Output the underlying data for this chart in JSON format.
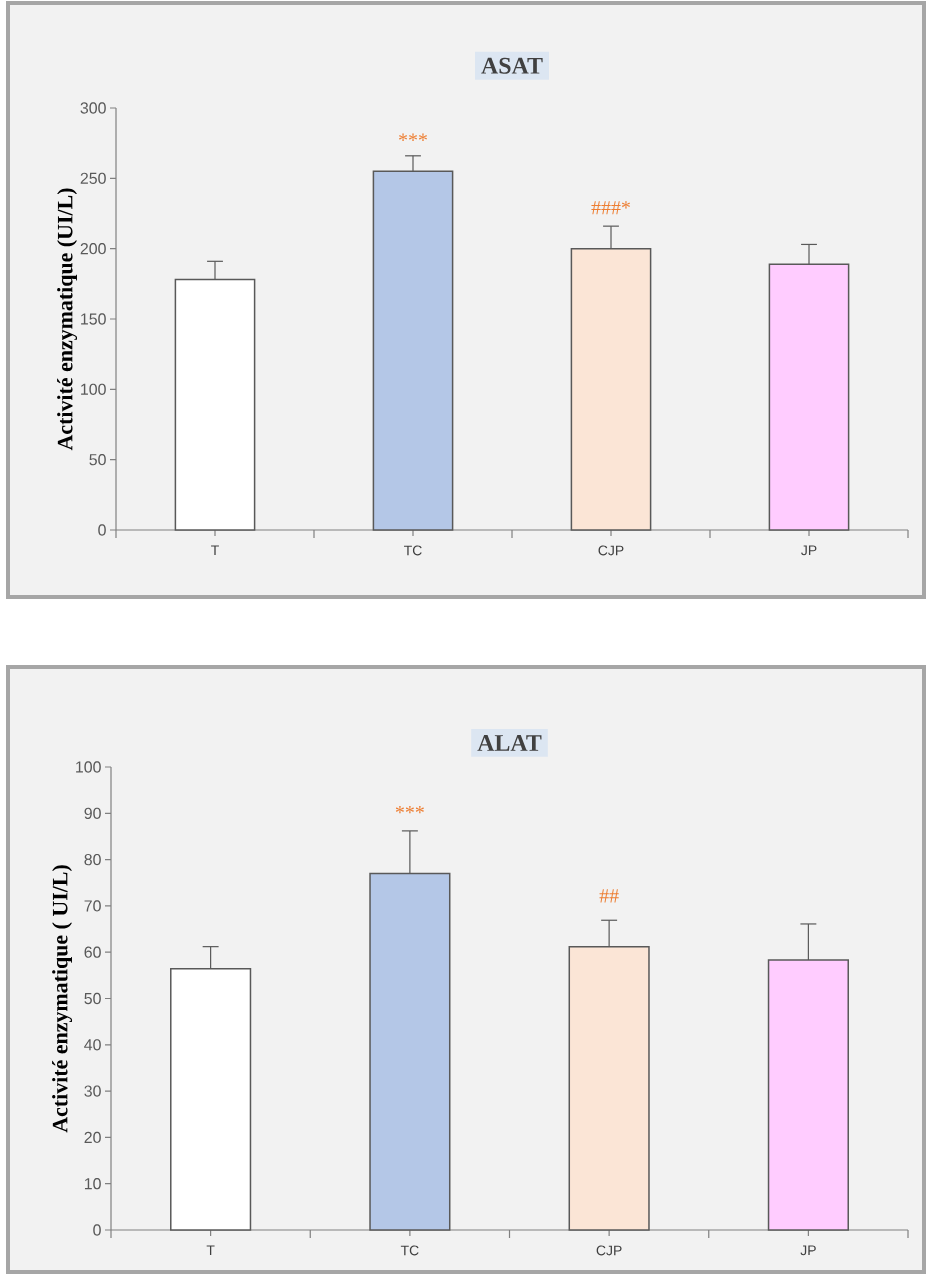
{
  "chart_data": [
    {
      "type": "bar",
      "title": "ASAT",
      "ylabel": "Activité enzymatique (UI/L)",
      "categories": [
        "T",
        "TC",
        "CJP",
        "JP"
      ],
      "values": [
        178,
        255,
        200,
        189
      ],
      "colors": [
        "#ffffff",
        "#b4c7e7",
        "#fbe5d6",
        "#ffccff"
      ],
      "errors": [
        [
          178,
          191
        ],
        [
          255,
          266
        ],
        [
          200,
          216
        ],
        [
          189,
          203
        ]
      ],
      "ylim": [
        0,
        300
      ],
      "yticks": [
        0,
        50,
        100,
        150,
        200,
        250,
        300
      ],
      "annotations": [
        "***",
        "###*"
      ]
    },
    {
      "type": "bar",
      "title": "ALAT",
      "ylabel": "Activité enzymatique ( UI/L)",
      "categories": [
        "T",
        "TC",
        "CJP",
        "JP"
      ],
      "values": [
        56.4,
        77,
        61.2,
        58.3
      ],
      "colors": [
        "#ffffff",
        "#b4c7e7",
        "#fbe5d6",
        "#ffccff"
      ],
      "errors": [
        [
          56.4,
          61.2
        ],
        [
          77,
          86.2
        ],
        [
          61.2,
          66.9
        ],
        [
          58.3,
          66.1
        ]
      ],
      "ylim": [
        0,
        100
      ],
      "yticks": [
        0,
        10,
        20,
        30,
        40,
        50,
        60,
        70,
        80,
        90,
        100
      ],
      "annotations": [
        "***",
        "##"
      ]
    }
  ]
}
